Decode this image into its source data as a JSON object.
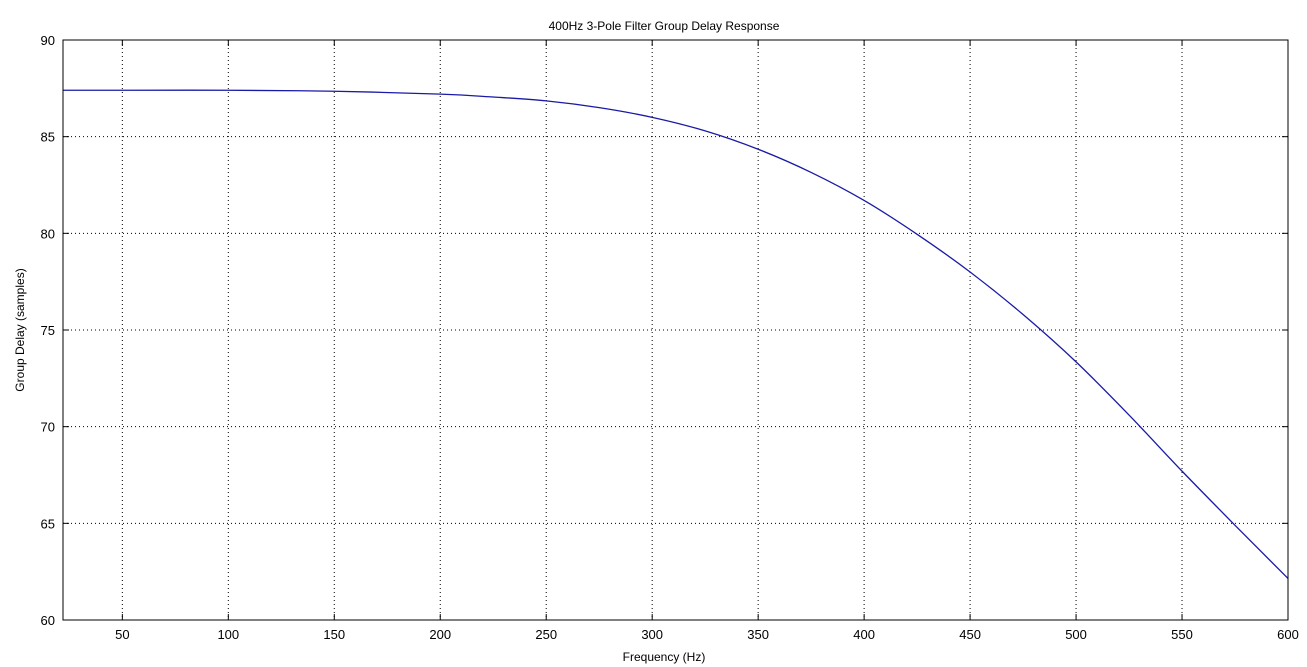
{
  "chart_data": {
    "type": "line",
    "title": "400Hz 3-Pole Filter Group Delay Response",
    "xlabel": "Frequency (Hz)",
    "ylabel": "Group Delay (samples)",
    "xlim": [
      22,
      600
    ],
    "ylim": [
      60,
      90
    ],
    "xticks": [
      50,
      100,
      150,
      200,
      250,
      300,
      350,
      400,
      450,
      500,
      550,
      600
    ],
    "yticks": [
      60,
      65,
      70,
      75,
      80,
      85,
      90
    ],
    "grid": true,
    "grid_style": "dotted",
    "colors": {
      "line": "#1a1aa6",
      "axes": "#000000",
      "grid": "#000000",
      "background": "#ffffff"
    },
    "series": [
      {
        "x": [
          22,
          50,
          100,
          150,
          200,
          225,
          250,
          275,
          300,
          325,
          350,
          375,
          400,
          425,
          450,
          475,
          500,
          525,
          550,
          575,
          600
        ],
        "y": [
          87.4,
          87.4,
          87.4,
          87.35,
          87.2,
          87.05,
          86.85,
          86.5,
          86.0,
          85.3,
          84.35,
          83.15,
          81.7,
          79.95,
          78.0,
          75.8,
          73.35,
          70.6,
          67.7,
          64.9,
          62.15
        ]
      }
    ]
  }
}
